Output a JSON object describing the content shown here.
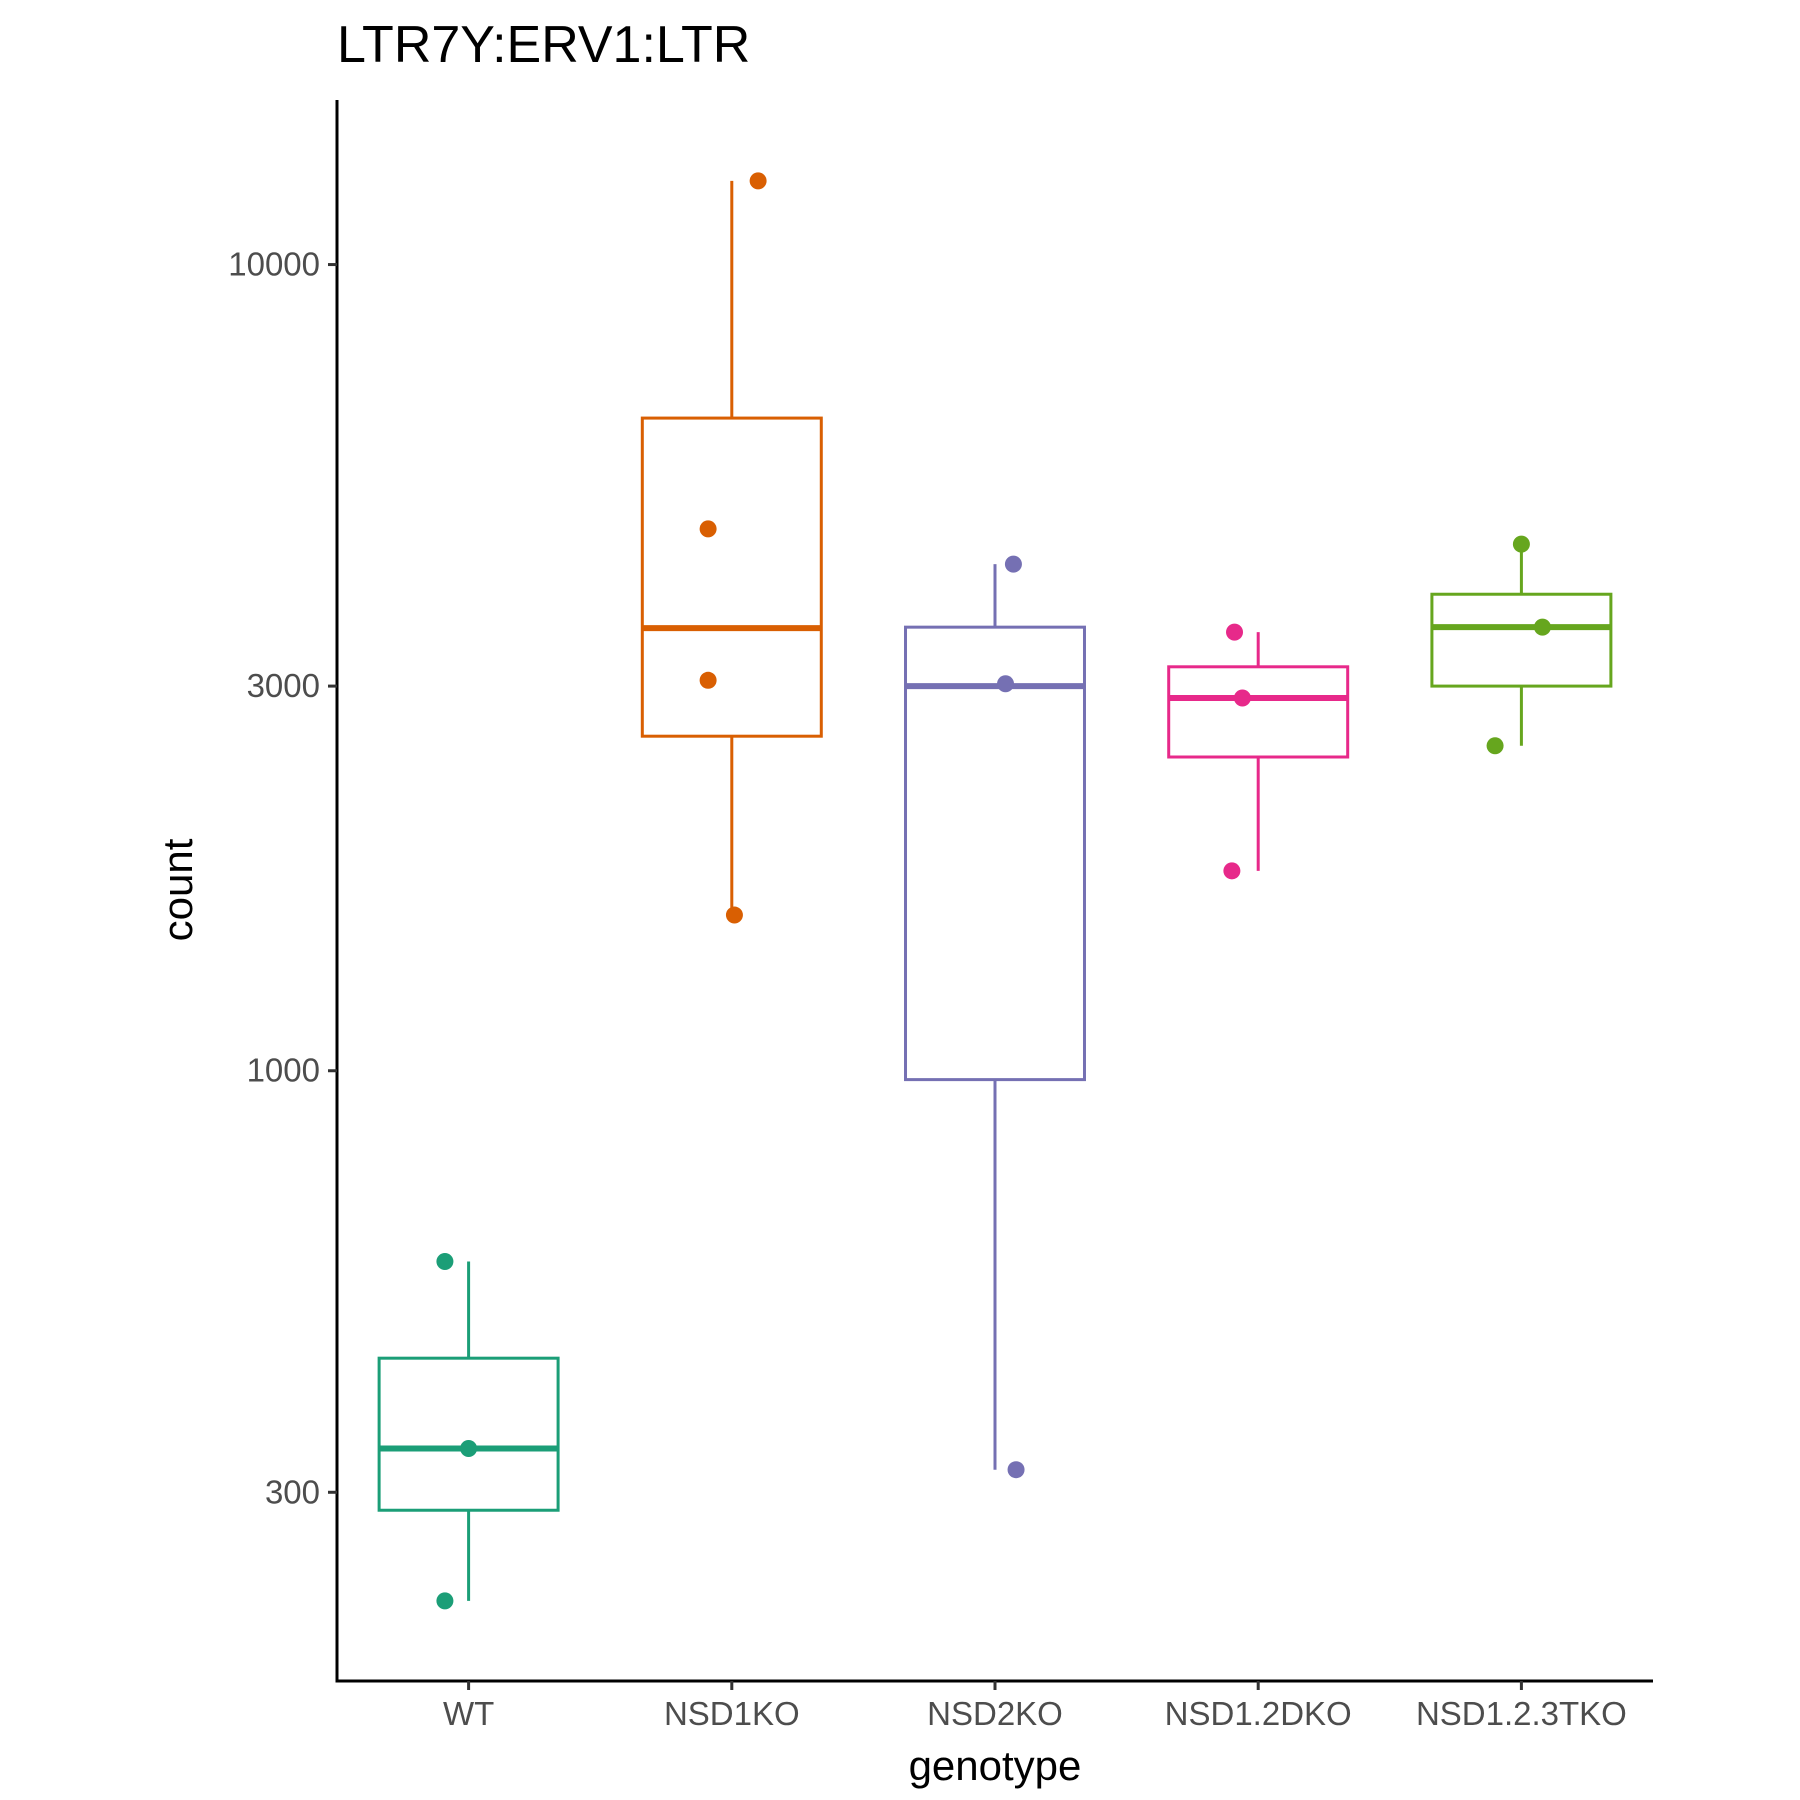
{
  "chart_data": {
    "type": "box",
    "title": "LTR7Y:ERV1:LTR",
    "xlabel": "genotype",
    "ylabel": "count",
    "yscale": "log10",
    "ylim": [
      175,
      16000
    ],
    "yticks": [
      300,
      1000,
      3000,
      10000
    ],
    "ytick_labels": [
      "300",
      "1000",
      "3000",
      "10000"
    ],
    "grid": false,
    "legend": "none",
    "categories": [
      "WT",
      "NSD1KO",
      "NSD2KO",
      "NSD1.2DKO",
      "NSD1.2.3TKO"
    ],
    "series": [
      {
        "category": "WT",
        "color": "#1b9e77",
        "box": {
          "lower_whisker": 220,
          "q1": 285,
          "median": 340,
          "q3": 440,
          "upper_whisker": 580
        },
        "points": [
          580,
          340,
          220
        ],
        "jitter": [
          -0.09,
          0,
          -0.09
        ]
      },
      {
        "category": "NSD1KO",
        "color": "#d95f02",
        "box": {
          "lower_whisker": 1560,
          "q1": 2600,
          "median": 3540,
          "q3": 6450,
          "upper_whisker": 12700
        },
        "points": [
          12700,
          4700,
          3050,
          1560
        ],
        "jitter": [
          0.1,
          -0.09,
          -0.09,
          0.01
        ]
      },
      {
        "category": "NSD2KO",
        "color": "#7570b3",
        "box": {
          "lower_whisker": 320,
          "q1": 975,
          "median": 3000,
          "q3": 3550,
          "upper_whisker": 4250
        },
        "points": [
          4250,
          3020,
          320
        ],
        "jitter": [
          0.07,
          0.04,
          0.08
        ]
      },
      {
        "category": "NSD1.2DKO",
        "color": "#e7298a",
        "box": {
          "lower_whisker": 1770,
          "q1": 2450,
          "median": 2900,
          "q3": 3170,
          "upper_whisker": 3500
        },
        "points": [
          3500,
          2900,
          1770
        ],
        "jitter": [
          -0.09,
          -0.06,
          -0.1
        ]
      },
      {
        "category": "NSD1.2.3TKO",
        "color": "#66a61e",
        "box": {
          "lower_whisker": 2530,
          "q1": 3000,
          "median": 3550,
          "q3": 3900,
          "upper_whisker": 4500
        },
        "points": [
          4500,
          3550,
          2530
        ],
        "jitter": [
          0.0,
          0.08,
          -0.1
        ]
      }
    ]
  }
}
